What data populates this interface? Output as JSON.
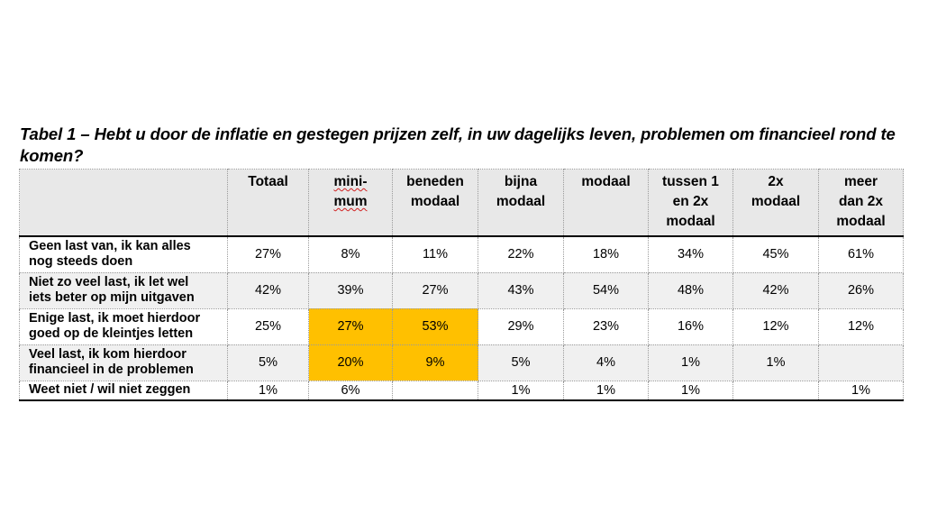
{
  "title": "Tabel 1 – Hebt u door de inflatie en gestegen prijzen zelf, in uw dagelijks leven, problemen om financieel rond te komen?",
  "columns": [
    "",
    "Totaal",
    "mini-\nmum",
    "beneden\nmodaal",
    "bijna\nmodaal",
    "modaal",
    "tussen 1\nen 2x\nmodaal",
    "2x\nmodaal",
    "meer\ndan 2x\nmodaal"
  ],
  "rows": [
    {
      "label": "Geen last van, ik kan alles\nnog steeds doen",
      "values": [
        "27%",
        "8%",
        "11%",
        "22%",
        "18%",
        "34%",
        "45%",
        "61%"
      ]
    },
    {
      "label": "Niet zo veel last, ik let wel\niets beter op mijn uitgaven",
      "values": [
        "42%",
        "39%",
        "27%",
        "43%",
        "54%",
        "48%",
        "42%",
        "26%"
      ]
    },
    {
      "label": "Enige last, ik moet hierdoor\ngoed op de kleintjes letten",
      "values": [
        "25%",
        "27%",
        "53%",
        "29%",
        "23%",
        "16%",
        "12%",
        "12%"
      ]
    },
    {
      "label": "Veel last, ik kom hierdoor\nfinancieel in de problemen",
      "values": [
        "5%",
        "20%",
        "9%",
        "5%",
        "4%",
        "1%",
        "1%",
        ""
      ]
    },
    {
      "label": "Weet niet / wil niet zeggen",
      "values": [
        "1%",
        "6%",
        "",
        "1%",
        "1%",
        "1%",
        "",
        "1%"
      ]
    }
  ],
  "highlight_color": "#ffc000"
}
